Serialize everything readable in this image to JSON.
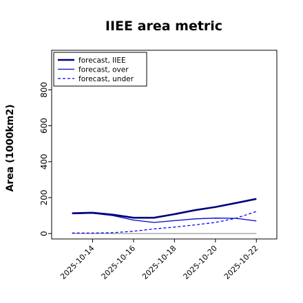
{
  "chart_data": {
    "type": "line",
    "title": "IIEE area metric",
    "xlabel": "",
    "ylabel": "Area (1000km2)",
    "ylim": [
      -30,
      1020
    ],
    "xlim": [
      "2025-10-12",
      "2025-10-23"
    ],
    "y_ticks": [
      0,
      200,
      400,
      600,
      800
    ],
    "x_ticks": [
      "2025-10-14",
      "2025-10-16",
      "2025-10-18",
      "2025-10-20",
      "2025-10-22"
    ],
    "x_tick_colors": [
      "#228B22",
      "#000000",
      "#000000",
      "#000000",
      "#000000"
    ],
    "grid": false,
    "legend_position": "top-left",
    "x": [
      "2025-10-13",
      "2025-10-14",
      "2025-10-15",
      "2025-10-16",
      "2025-10-17",
      "2025-10-18",
      "2025-10-19",
      "2025-10-20",
      "2025-10-21",
      "2025-10-22"
    ],
    "series": [
      {
        "name": "forecast, IIEE",
        "color": "#00007f",
        "style": "solid-thick",
        "values": [
          113,
          116,
          105,
          88,
          88,
          108,
          130,
          148,
          170,
          193
        ]
      },
      {
        "name": "forecast, over",
        "color": "#0000cc",
        "style": "solid",
        "values": [
          110,
          113,
          100,
          75,
          62,
          72,
          82,
          86,
          85,
          70
        ]
      },
      {
        "name": "forecast, under",
        "color": "#0000ff",
        "style": "dashed",
        "values": [
          3,
          3,
          5,
          13,
          26,
          36,
          48,
          62,
          85,
          123
        ]
      }
    ],
    "baseline": {
      "value": 0,
      "color": "#808080"
    }
  }
}
